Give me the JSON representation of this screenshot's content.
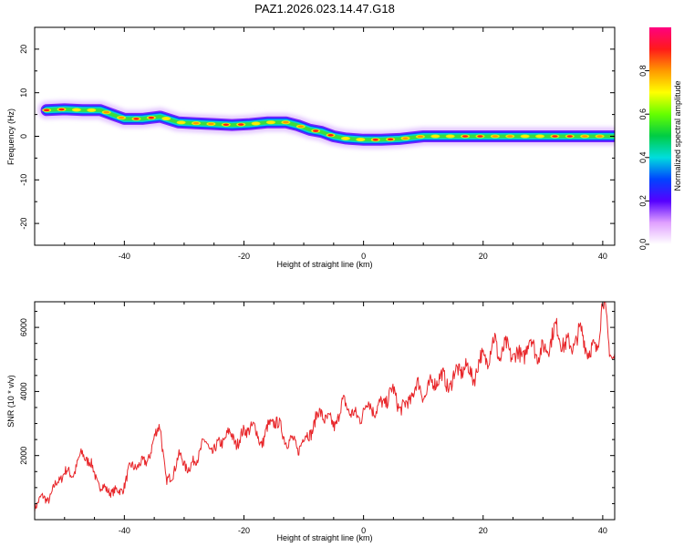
{
  "title": "PAZ1.2026.023.14.47.G18",
  "chart_data": [
    {
      "type": "heatmap",
      "name": "spectrogram",
      "xlabel": "Height of straight line (km)",
      "ylabel": "Frequency (Hz)",
      "xlim": [
        -55,
        42
      ],
      "ylim": [
        -25,
        25
      ],
      "xticks": [
        -40,
        -20,
        0,
        20,
        40
      ],
      "yticks": [
        -20,
        -10,
        0,
        10,
        20
      ],
      "ridge": {
        "x": [
          -53,
          -50,
          -47,
          -44,
          -42,
          -40,
          -37,
          -34,
          -31,
          -28,
          -25,
          -22,
          -19,
          -16,
          -13,
          -11,
          -9,
          -7,
          -5,
          -3,
          0,
          3,
          6,
          10,
          15,
          20,
          25,
          30,
          35,
          40,
          42
        ],
        "y": [
          6,
          6.2,
          6,
          6,
          5,
          4,
          4,
          4.5,
          3.2,
          3,
          2.8,
          2.6,
          2.8,
          3.2,
          3.2,
          2.5,
          1.5,
          1,
          0,
          -0.5,
          -0.8,
          -0.8,
          -0.6,
          0,
          0,
          0,
          0,
          0,
          0,
          0,
          0
        ]
      },
      "colorbar": {
        "label": "Normalized spectral amplitude",
        "ticks": [
          "0.0",
          "0.2",
          "0.4",
          "0.6",
          "0.8"
        ],
        "range": [
          0,
          1
        ]
      }
    },
    {
      "type": "line",
      "name": "snr",
      "xlabel": "Height of straight line (km)",
      "ylabel": "SNR (10 * v/v)",
      "xlim": [
        -55,
        42
      ],
      "ylim": [
        0,
        6800
      ],
      "xticks": [
        -40,
        -20,
        0,
        20,
        40
      ],
      "yticks": [
        2000,
        4000,
        6000
      ],
      "color": "#e8262a",
      "series": [
        {
          "name": "SNR",
          "x": [
            -55,
            -53,
            -51,
            -49,
            -47,
            -45,
            -43,
            -41,
            -39,
            -37,
            -35,
            -34,
            -33,
            -31,
            -29,
            -27,
            -25,
            -23,
            -21,
            -19,
            -17,
            -15,
            -13,
            -11,
            -9,
            -7,
            -5,
            -3,
            -1,
            1,
            3,
            5,
            7,
            9,
            11,
            13,
            15,
            17,
            19,
            21,
            22,
            23,
            25,
            27,
            29,
            31,
            33,
            35,
            37,
            39,
            40,
            41,
            42
          ],
          "y": [
            400,
            700,
            1200,
            1500,
            2000,
            1500,
            800,
            900,
            1500,
            1800,
            2300,
            3000,
            1200,
            1800,
            1700,
            2200,
            2300,
            2500,
            2600,
            2800,
            2600,
            3000,
            2700,
            2100,
            2900,
            3200,
            3100,
            3500,
            3300,
            3400,
            3700,
            3800,
            3600,
            4000,
            4200,
            4300,
            4500,
            4600,
            4800,
            5000,
            5800,
            5200,
            5100,
            5400,
            5200,
            5600,
            5700,
            5500,
            5600,
            5300,
            6700,
            5500,
            5300
          ]
        }
      ]
    }
  ]
}
